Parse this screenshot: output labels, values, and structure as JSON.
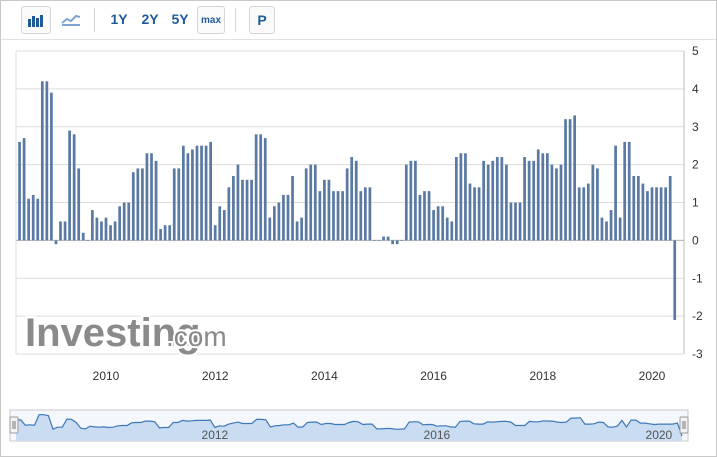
{
  "toolbar": {
    "bar_chart_icon": "bar-chart-icon",
    "line_chart_icon": "line-chart-icon",
    "range_1y": "1Y",
    "range_2y": "2Y",
    "range_5y": "5Y",
    "range_max": "max",
    "print_label": "P"
  },
  "colors": {
    "bar": "#5a7aa4",
    "bar_stroke": "#4b6a93",
    "grid": "#dcdcdc",
    "accent": "#1f5b9a",
    "navigator_fill": "#c9dcf2",
    "navigator_line": "#3e78b8"
  },
  "watermark": {
    "brand": "Investing",
    "suffix": ".com"
  },
  "chart_data": {
    "type": "bar",
    "title": "",
    "xlabel": "",
    "ylabel": "",
    "ylim": [
      -3,
      5
    ],
    "y_ticks": [
      "5",
      "4",
      "3",
      "2",
      "1",
      "0",
      "-1",
      "-2",
      "-3"
    ],
    "x_ticks": [
      "2010",
      "2012",
      "2014",
      "2016",
      "2018",
      "2020"
    ],
    "grid": true,
    "x_start": "2008-06",
    "values": [
      2.6,
      2.7,
      1.1,
      1.2,
      1.1,
      4.2,
      4.2,
      3.9,
      -0.1,
      0.5,
      0.5,
      2.9,
      2.8,
      1.9,
      0.2,
      0.0,
      0.8,
      0.6,
      0.5,
      0.6,
      0.4,
      0.5,
      0.9,
      1.0,
      1.0,
      1.8,
      1.9,
      1.9,
      2.3,
      2.3,
      2.1,
      0.3,
      0.4,
      0.4,
      1.9,
      1.9,
      2.5,
      2.3,
      2.4,
      2.5,
      2.5,
      2.5,
      2.6,
      0.4,
      0.9,
      0.8,
      1.4,
      1.7,
      2.0,
      1.6,
      1.6,
      1.6,
      2.8,
      2.8,
      2.7,
      0.6,
      0.9,
      1.0,
      1.2,
      1.2,
      1.7,
      0.5,
      0.6,
      1.9,
      2.0,
      2.0,
      1.3,
      1.6,
      1.6,
      1.3,
      1.3,
      1.3,
      1.9,
      2.2,
      2.1,
      1.3,
      1.4,
      1.4,
      0.0,
      0.0,
      0.1,
      0.1,
      -0.1,
      -0.1,
      0.0,
      2.0,
      2.1,
      2.1,
      1.2,
      1.3,
      1.3,
      0.8,
      0.9,
      0.9,
      0.6,
      0.5,
      2.2,
      2.3,
      2.3,
      1.5,
      1.4,
      1.4,
      2.1,
      2.0,
      2.1,
      2.2,
      2.2,
      2.0,
      1.0,
      1.0,
      1.0,
      2.2,
      2.1,
      2.1,
      2.4,
      2.3,
      2.3,
      2.0,
      1.9,
      2.0,
      3.2,
      3.2,
      3.3,
      1.4,
      1.4,
      1.5,
      2.0,
      1.9,
      0.6,
      0.5,
      0.8,
      2.5,
      0.6,
      2.6,
      2.6,
      1.7,
      1.7,
      1.5,
      1.3,
      1.4,
      1.4,
      1.4,
      1.4,
      1.7,
      -2.1
    ]
  },
  "navigator": {
    "labels": [
      "2012",
      "2016",
      "2020"
    ]
  }
}
